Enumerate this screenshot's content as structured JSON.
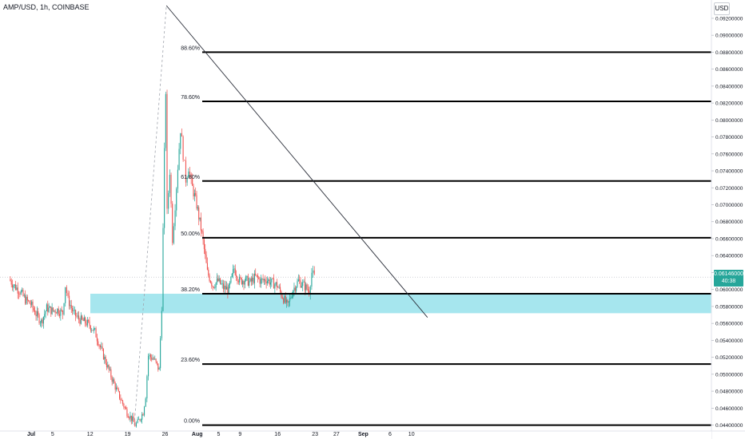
{
  "symbol_title": "AMP/USD, 1h, COINBASE",
  "currency_label": "USD",
  "colors": {
    "up": "#26a69a",
    "down": "#ef5350",
    "fib_line": "#000000",
    "zone_fill": "#a6e6ee",
    "trendline": "#2a2e39",
    "axis_text": "#131722"
  },
  "price_badge": {
    "price": "0.06146000",
    "countdown": "40:38"
  },
  "chart_data": {
    "type": "candlestick",
    "title": "AMP/USD, 1h, COINBASE",
    "xlabel": "",
    "ylabel": "",
    "ylim": [
      0.0433,
      0.0935
    ],
    "y_ticks": [
      "0.09200000",
      "0.09000000",
      "0.08800000",
      "0.08600000",
      "0.08400000",
      "0.08200000",
      "0.08000000",
      "0.07800000",
      "0.07600000",
      "0.07400000",
      "0.07200000",
      "0.07000000",
      "0.06800000",
      "0.06600000",
      "0.06400000",
      "0.06200000",
      "0.06000000",
      "0.05800000",
      "0.05600000",
      "0.05400000",
      "0.05200000",
      "0.05000000",
      "0.04800000",
      "0.04600000",
      "0.04400000"
    ],
    "x_ticks": [
      {
        "label": "Jul",
        "date": "Jul 1"
      },
      {
        "label": "5",
        "date": "Jul 5"
      },
      {
        "label": "12",
        "date": "Jul 12"
      },
      {
        "label": "19",
        "date": "Jul 19"
      },
      {
        "label": "26",
        "date": "Jul 26"
      },
      {
        "label": "Aug",
        "date": "Aug 1"
      },
      {
        "label": "5",
        "date": "Aug 5"
      },
      {
        "label": "9",
        "date": "Aug 9"
      },
      {
        "label": "16",
        "date": "Aug 16"
      },
      {
        "label": "23",
        "date": "Aug 23"
      },
      {
        "label": "27",
        "date": "Aug 27"
      },
      {
        "label": "Sep",
        "date": "Sep 1"
      },
      {
        "label": "6",
        "date": "Sep 6"
      },
      {
        "label": "10",
        "date": "Sep 10"
      }
    ],
    "fib_levels": [
      {
        "label": "88.60%",
        "price": 0.088
      },
      {
        "label": "78.60%",
        "price": 0.0822
      },
      {
        "label": "61.80%",
        "price": 0.0728
      },
      {
        "label": "50.00%",
        "price": 0.0661
      },
      {
        "label": "38.20%",
        "price": 0.0595
      },
      {
        "label": "23.60%",
        "price": 0.0512
      },
      {
        "label": "0.00%",
        "price": 0.044
      }
    ],
    "support_zone": {
      "from": 0.0572,
      "to": 0.0595
    },
    "fib_anchor_line": {
      "from": {
        "date": "Jul 20 06:00",
        "price": 0.044
      },
      "to": {
        "date": "Jul 26 06:00",
        "price": 0.0935
      }
    },
    "trendline": {
      "from": {
        "date": "Jul 26 06:00",
        "price": 0.0935
      },
      "to": {
        "date": "Sep 13",
        "price": 0.0567
      }
    },
    "last_price": 0.06146,
    "price_path": [
      {
        "date": "Jun 27 00:00",
        "price": 0.0612
      },
      {
        "date": "Jun 28 00:00",
        "price": 0.0604
      },
      {
        "date": "Jun 29 00:00",
        "price": 0.0598
      },
      {
        "date": "Jun 30 00:00",
        "price": 0.0588
      },
      {
        "date": "Jul 1 00:00",
        "price": 0.0583
      },
      {
        "date": "Jul 2 00:00",
        "price": 0.0571
      },
      {
        "date": "Jul 3 00:00",
        "price": 0.0562
      },
      {
        "date": "Jul 4 00:00",
        "price": 0.0578
      },
      {
        "date": "Jul 5 00:00",
        "price": 0.0575
      },
      {
        "date": "Jul 6 00:00",
        "price": 0.0576
      },
      {
        "date": "Jul 7 00:00",
        "price": 0.0572
      },
      {
        "date": "Jul 7 12:00",
        "price": 0.0605
      },
      {
        "date": "Jul 8 00:00",
        "price": 0.0588
      },
      {
        "date": "Jul 9 00:00",
        "price": 0.0572
      },
      {
        "date": "Jul 10 00:00",
        "price": 0.0565
      },
      {
        "date": "Jul 11 00:00",
        "price": 0.0562
      },
      {
        "date": "Jul 12 00:00",
        "price": 0.0558
      },
      {
        "date": "Jul 13 00:00",
        "price": 0.055
      },
      {
        "date": "Jul 14 00:00",
        "price": 0.0532
      },
      {
        "date": "Jul 15 00:00",
        "price": 0.0515
      },
      {
        "date": "Jul 16 00:00",
        "price": 0.0498
      },
      {
        "date": "Jul 17 00:00",
        "price": 0.0482
      },
      {
        "date": "Jul 18 00:00",
        "price": 0.0468
      },
      {
        "date": "Jul 19 00:00",
        "price": 0.0455
      },
      {
        "date": "Jul 20 00:00",
        "price": 0.0446
      },
      {
        "date": "Jul 20 12:00",
        "price": 0.044
      },
      {
        "date": "Jul 21 00:00",
        "price": 0.0443
      },
      {
        "date": "Jul 22 00:00",
        "price": 0.0455
      },
      {
        "date": "Jul 22 12:00",
        "price": 0.0475
      },
      {
        "date": "Jul 23 00:00",
        "price": 0.0522
      },
      {
        "date": "Jul 24 00:00",
        "price": 0.0518
      },
      {
        "date": "Jul 25 00:00",
        "price": 0.0505
      },
      {
        "date": "Jul 25 12:00",
        "price": 0.058
      },
      {
        "date": "Jul 26 00:00",
        "price": 0.076
      },
      {
        "date": "Jul 26 06:00",
        "price": 0.0835
      },
      {
        "date": "Jul 26 12:00",
        "price": 0.069
      },
      {
        "date": "Jul 27 00:00",
        "price": 0.074
      },
      {
        "date": "Jul 27 12:00",
        "price": 0.066
      },
      {
        "date": "Jul 28 00:00",
        "price": 0.07
      },
      {
        "date": "Jul 28 12:00",
        "price": 0.0745
      },
      {
        "date": "Jul 29 00:00",
        "price": 0.079
      },
      {
        "date": "Jul 29 12:00",
        "price": 0.076
      },
      {
        "date": "Jul 30 00:00",
        "price": 0.073
      },
      {
        "date": "Jul 30 12:00",
        "price": 0.0745
      },
      {
        "date": "Jul 31 00:00",
        "price": 0.0725
      },
      {
        "date": "Aug 1 00:00",
        "price": 0.07
      },
      {
        "date": "Aug 2 00:00",
        "price": 0.0665
      },
      {
        "date": "Aug 3 00:00",
        "price": 0.062
      },
      {
        "date": "Aug 4 00:00",
        "price": 0.0605
      },
      {
        "date": "Aug 5 00:00",
        "price": 0.061
      },
      {
        "date": "Aug 6 00:00",
        "price": 0.0602
      },
      {
        "date": "Aug 7 00:00",
        "price": 0.06
      },
      {
        "date": "Aug 8 00:00",
        "price": 0.0625
      },
      {
        "date": "Aug 9 00:00",
        "price": 0.061
      },
      {
        "date": "Aug 10 00:00",
        "price": 0.0612
      },
      {
        "date": "Aug 11 00:00",
        "price": 0.0608
      },
      {
        "date": "Aug 12 00:00",
        "price": 0.0615
      },
      {
        "date": "Aug 13 00:00",
        "price": 0.061
      },
      {
        "date": "Aug 14 00:00",
        "price": 0.0612
      },
      {
        "date": "Aug 15 00:00",
        "price": 0.0608
      },
      {
        "date": "Aug 16 00:00",
        "price": 0.0605
      },
      {
        "date": "Aug 17 00:00",
        "price": 0.0592
      },
      {
        "date": "Aug 18 00:00",
        "price": 0.058
      },
      {
        "date": "Aug 19 00:00",
        "price": 0.06
      },
      {
        "date": "Aug 20 00:00",
        "price": 0.061
      },
      {
        "date": "Aug 21 00:00",
        "price": 0.0605
      },
      {
        "date": "Aug 22 00:00",
        "price": 0.0598
      },
      {
        "date": "Aug 22 12:00",
        "price": 0.062
      },
      {
        "date": "Aug 23 00:00",
        "price": 0.06146
      }
    ]
  }
}
